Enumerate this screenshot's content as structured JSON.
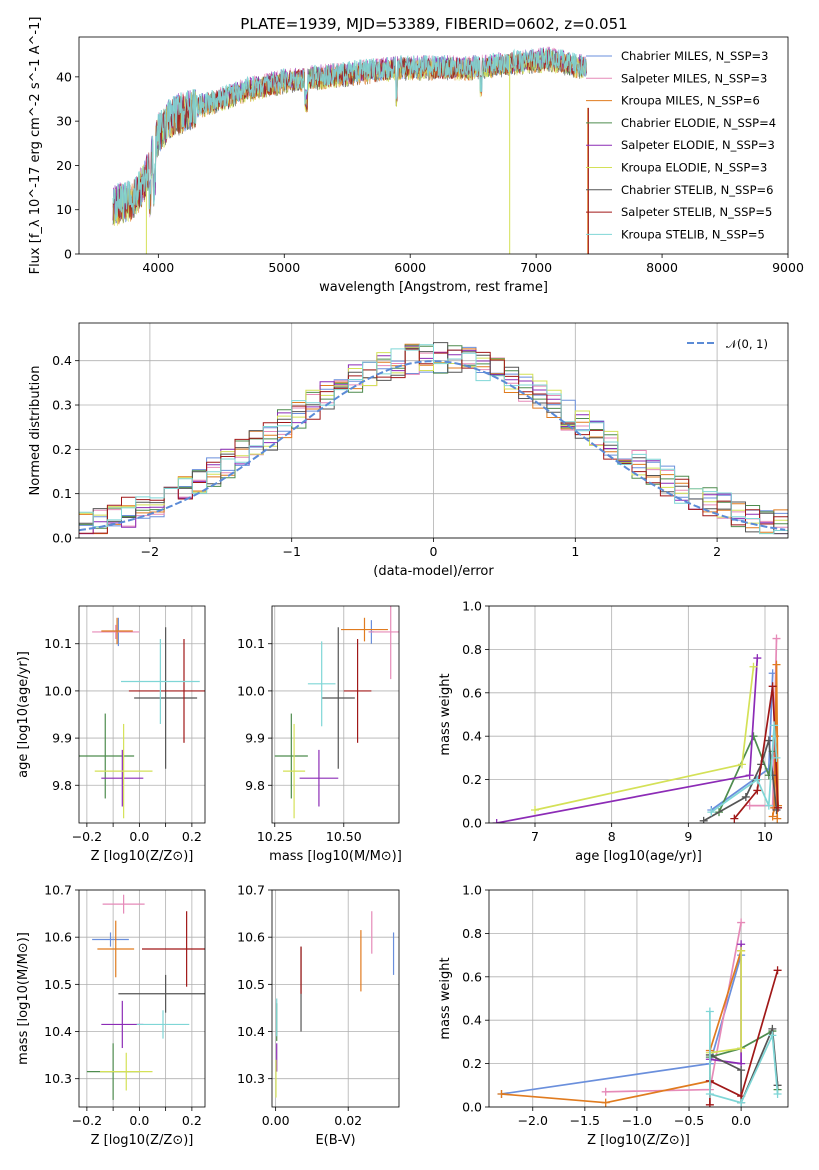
{
  "figure": {
    "title": "PLATE=1939, MJD=53389, FIBERID=0602, z=0.051"
  },
  "colors": {
    "c0": "#6a8fdc",
    "c1": "#e68ab8",
    "c2": "#e07b1f",
    "c3": "#4e8c4e",
    "c4": "#8c2bb6",
    "c5": "#d4e157",
    "c6": "#555555",
    "c7": "#a01818",
    "c8": "#7fd6d6",
    "dashed": "#5b8bd6"
  },
  "chart_data": [
    {
      "id": "spectrum",
      "type": "line",
      "xlabel": "wavelength [Angstrom, rest frame]",
      "ylabel": "Flux [f_λ 10^-17 erg cm^-2 s^-1 A^-1]",
      "xlim": [
        3370,
        9000
      ],
      "ylim": [
        0,
        49
      ],
      "xticks": [
        4000,
        5000,
        6000,
        7000,
        8000,
        9000
      ],
      "yticks": [
        0,
        10,
        20,
        30,
        40
      ],
      "grid": false,
      "legend": "upper-right",
      "legend_entries": [
        {
          "name": "Chabrier MILES, N_SSP=3",
          "color": "c0"
        },
        {
          "name": "Salpeter MILES, N_SSP=3",
          "color": "c1"
        },
        {
          "name": "Kroupa MILES, N_SSP=6",
          "color": "c2"
        },
        {
          "name": "Chabrier ELODIE, N_SSP=4",
          "color": "c3"
        },
        {
          "name": "Salpeter ELODIE, N_SSP=3",
          "color": "c4"
        },
        {
          "name": "Kroupa ELODIE, N_SSP=3",
          "color": "c5"
        },
        {
          "name": "Chabrier STELIB, N_SSP=6",
          "color": "c6"
        },
        {
          "name": "Salpeter STELIB, N_SSP=5",
          "color": "c7"
        },
        {
          "name": "Kroupa STELIB, N_SSP=5",
          "color": "c8"
        }
      ],
      "continuum": {
        "x": [
          3640,
          3800,
          3900,
          4000,
          4100,
          4300,
          4500,
          4700,
          5000,
          5300,
          5600,
          5900,
          6200,
          6500,
          6800,
          7100,
          7400
        ],
        "y": [
          11,
          12,
          17,
          27,
          31,
          33,
          35,
          37,
          39,
          40,
          41,
          42,
          42,
          42,
          43,
          44,
          42
        ]
      },
      "spikes": [
        {
          "x": 3905,
          "ymin": 0,
          "ymax": 15,
          "color": "c5"
        },
        {
          "x": 6790,
          "ymin": 0,
          "ymax": 45,
          "color": "c5"
        },
        {
          "x": 7410,
          "ymin": 0,
          "ymax": 33,
          "color": "c2"
        },
        {
          "x": 7415,
          "ymin": 0,
          "ymax": 33,
          "color": "c7"
        }
      ]
    },
    {
      "id": "residuals",
      "type": "histogram",
      "xlabel": "(data-model)/error",
      "ylabel": "Normed distribution",
      "xlim": [
        -2.5,
        2.5
      ],
      "ylim": [
        0,
        0.485
      ],
      "xticks": [
        -2,
        -1,
        0,
        1,
        2
      ],
      "yticks": [
        0.0,
        0.1,
        0.2,
        0.3,
        0.4
      ],
      "grid": true,
      "bin_width": 0.1,
      "legend": "upper-right",
      "legend_entries": [
        {
          "name": "𝒩(0, 1)",
          "color": "dashed",
          "style": "dashed"
        }
      ],
      "normal_curve": {
        "mean": 0,
        "sigma": 1
      }
    },
    {
      "id": "age-vs-Z",
      "type": "errorbar",
      "xlabel": "Z [log10(Z/Z⊙)]",
      "ylabel": "age [log10(age/yr)]",
      "xlim": [
        -0.23,
        0.25
      ],
      "ylim": [
        9.72,
        10.18
      ],
      "xticks": [
        -0.2,
        -0.1,
        0.0,
        0.1,
        0.2
      ],
      "xticklabels": [
        "−0.2",
        "",
        "0.0",
        "",
        "0.2"
      ],
      "yticks": [
        9.8,
        9.9,
        10.0,
        10.1
      ],
      "grid": true,
      "points": [
        {
          "x": -0.08,
          "y": 10.125,
          "xerr": 0.05,
          "yerr": 0.03,
          "color": "c0"
        },
        {
          "x": -0.09,
          "y": 10.125,
          "xerr": 0.09,
          "yerr": 0.015,
          "color": "c1"
        },
        {
          "x": -0.085,
          "y": 10.127,
          "xerr": 0.06,
          "yerr": 0.028,
          "color": "c2"
        },
        {
          "x": -0.13,
          "y": 9.862,
          "xerr": 0.11,
          "yerr": 0.09,
          "color": "c3"
        },
        {
          "x": -0.065,
          "y": 9.815,
          "xerr": 0.08,
          "yerr": 0.06,
          "color": "c4"
        },
        {
          "x": -0.06,
          "y": 9.83,
          "xerr": 0.11,
          "yerr": 0.1,
          "color": "c5"
        },
        {
          "x": 0.1,
          "y": 9.985,
          "xerr": 0.12,
          "yerr": 0.15,
          "color": "c6"
        },
        {
          "x": 0.17,
          "y": 10.0,
          "xerr": 0.21,
          "yerr": 0.11,
          "color": "c7"
        },
        {
          "x": 0.08,
          "y": 10.02,
          "xerr": 0.15,
          "yerr": 0.09,
          "color": "c8"
        }
      ]
    },
    {
      "id": "age-vs-mass",
      "type": "errorbar",
      "xlabel": "mass [log10(M/M⊙)]",
      "ylabel": "",
      "xlim": [
        10.24,
        10.7
      ],
      "ylim": [
        9.72,
        10.18
      ],
      "xticks": [
        10.25,
        10.5
      ],
      "xticklabels": [
        "10.25",
        "10.50"
      ],
      "yticks": [
        9.8,
        9.9,
        10.0,
        10.1
      ],
      "grid": true,
      "points": [
        {
          "x": 10.6,
          "y": 10.125,
          "xerr": 0.01,
          "yerr": 0.025,
          "color": "c0"
        },
        {
          "x": 10.67,
          "y": 10.125,
          "xerr": 0.08,
          "yerr": 0.1,
          "color": "c1"
        },
        {
          "x": 10.575,
          "y": 10.13,
          "xerr": 0.085,
          "yerr": 0.025,
          "color": "c2"
        },
        {
          "x": 10.31,
          "y": 9.862,
          "xerr": 0.06,
          "yerr": 0.09,
          "color": "c3"
        },
        {
          "x": 10.41,
          "y": 9.815,
          "xerr": 0.07,
          "yerr": 0.06,
          "color": "c4"
        },
        {
          "x": 10.32,
          "y": 9.83,
          "xerr": 0.04,
          "yerr": 0.1,
          "color": "c5"
        },
        {
          "x": 10.48,
          "y": 9.985,
          "xerr": 0.06,
          "yerr": 0.15,
          "color": "c6"
        },
        {
          "x": 10.55,
          "y": 10.0,
          "xerr": 0.05,
          "yerr": 0.11,
          "color": "c7"
        },
        {
          "x": 10.42,
          "y": 10.015,
          "xerr": 0.05,
          "yerr": 0.09,
          "color": "c8"
        }
      ]
    },
    {
      "id": "weight-vs-age",
      "type": "line",
      "xlabel": "age [log10(age/yr)]",
      "ylabel": "mass weight",
      "xlim": [
        6.4,
        10.3
      ],
      "ylim": [
        0,
        1.0
      ],
      "xticks": [
        7,
        8,
        9,
        10
      ],
      "yticks": [
        0.0,
        0.2,
        0.4,
        0.6,
        0.8,
        1.0
      ],
      "grid": true,
      "series": [
        {
          "color": "c0",
          "x": [
            9.3,
            10.05,
            10.1
          ],
          "y": [
            0.06,
            0.25,
            0.69
          ]
        },
        {
          "color": "c1",
          "x": [
            9.8,
            10.1,
            10.15
          ],
          "y": [
            0.08,
            0.08,
            0.85
          ]
        },
        {
          "color": "c2",
          "x": [
            10.1,
            10.12,
            10.15,
            10.17,
            10.13,
            10.16
          ],
          "y": [
            0.03,
            0.07,
            0.73,
            0.08,
            0.4,
            0.02
          ]
        },
        {
          "color": "c3",
          "x": [
            9.4,
            9.85,
            10.05,
            10.1
          ],
          "y": [
            0.05,
            0.4,
            0.22,
            0.33
          ]
        },
        {
          "color": "c4",
          "x": [
            6.5,
            9.8,
            9.9
          ],
          "y": [
            0.0,
            0.22,
            0.76
          ]
        },
        {
          "color": "c5",
          "x": [
            7.0,
            9.7,
            9.85
          ],
          "y": [
            0.06,
            0.27,
            0.72
          ]
        },
        {
          "color": "c6",
          "x": [
            9.2,
            9.75,
            9.95,
            10.05,
            10.1,
            10.15
          ],
          "y": [
            0.01,
            0.12,
            0.27,
            0.38,
            0.22,
            0.06
          ]
        },
        {
          "color": "c7",
          "x": [
            9.6,
            9.9,
            10.1,
            10.17
          ],
          "y": [
            0.02,
            0.15,
            0.63,
            0.07
          ]
        },
        {
          "color": "c8",
          "x": [
            9.3,
            9.9,
            10.05,
            10.12,
            10.15
          ],
          "y": [
            0.05,
            0.2,
            0.08,
            0.45,
            0.3
          ]
        }
      ]
    },
    {
      "id": "mass-vs-Z",
      "type": "errorbar",
      "xlabel": "Z [log10(Z/Z⊙)]",
      "ylabel": "mass [log10(M/M⊙)]",
      "xlim": [
        -0.23,
        0.25
      ],
      "ylim": [
        10.24,
        10.7
      ],
      "xticks": [
        -0.2,
        -0.1,
        0.0,
        0.1,
        0.2
      ],
      "xticklabels": [
        "−0.2",
        "",
        "0.0",
        "",
        "0.2"
      ],
      "yticks": [
        10.3,
        10.4,
        10.5,
        10.6,
        10.7
      ],
      "grid": true,
      "points": [
        {
          "x": -0.11,
          "y": 10.595,
          "xerr": 0.07,
          "yerr": 0.015,
          "color": "c0"
        },
        {
          "x": -0.06,
          "y": 10.67,
          "xerr": 0.08,
          "yerr": 0.02,
          "color": "c1"
        },
        {
          "x": -0.09,
          "y": 10.575,
          "xerr": 0.07,
          "yerr": 0.06,
          "color": "c2"
        },
        {
          "x": -0.1,
          "y": 10.315,
          "xerr": 0.1,
          "yerr": 0.06,
          "color": "c3"
        },
        {
          "x": -0.065,
          "y": 10.415,
          "xerr": 0.08,
          "yerr": 0.05,
          "color": "c4"
        },
        {
          "x": -0.05,
          "y": 10.315,
          "xerr": 0.1,
          "yerr": 0.04,
          "color": "c5"
        },
        {
          "x": 0.1,
          "y": 10.48,
          "xerr": 0.18,
          "yerr": 0.04,
          "color": "c6"
        },
        {
          "x": 0.18,
          "y": 10.575,
          "xerr": 0.17,
          "yerr": 0.08,
          "color": "c7"
        },
        {
          "x": 0.09,
          "y": 10.415,
          "xerr": 0.1,
          "yerr": 0.03,
          "color": "c8"
        }
      ]
    },
    {
      "id": "mass-vs-EBV",
      "type": "errorbar",
      "xlabel": "E(B-V)",
      "ylabel": "",
      "xlim": [
        -0.001,
        0.034
      ],
      "ylim": [
        10.24,
        10.7
      ],
      "xticks": [
        0.0,
        0.02
      ],
      "xticklabels": [
        "0.00",
        "0.02"
      ],
      "yticks": [
        10.3,
        10.4,
        10.5,
        10.6,
        10.7
      ],
      "grid": true,
      "points": [
        {
          "x": 0.0325,
          "y": 10.565,
          "xerr": 0,
          "yerr": 0.045,
          "color": "c0"
        },
        {
          "x": 0.0265,
          "y": 10.61,
          "xerr": 0,
          "yerr": 0.045,
          "color": "c1"
        },
        {
          "x": 0.0235,
          "y": 10.55,
          "xerr": 0,
          "yerr": 0.065,
          "color": "c2"
        },
        {
          "x": 0.0003,
          "y": 10.42,
          "xerr": 0,
          "yerr": 0.04,
          "color": "c3"
        },
        {
          "x": 0.0003,
          "y": 10.345,
          "xerr": 0,
          "yerr": 0.03,
          "color": "c4"
        },
        {
          "x": 0.0001,
          "y": 10.3,
          "xerr": 0,
          "yerr": 0.04,
          "color": "c5"
        },
        {
          "x": 0.007,
          "y": 10.49,
          "xerr": 0,
          "yerr": 0.09,
          "color": "c6"
        },
        {
          "x": 0.007,
          "y": 10.53,
          "xerr": 0,
          "yerr": 0.05,
          "color": "c7"
        },
        {
          "x": 0.0003,
          "y": 10.43,
          "xerr": 0,
          "yerr": 0.04,
          "color": "c8"
        }
      ]
    },
    {
      "id": "weight-vs-Z",
      "type": "line",
      "xlabel": "Z [log10(Z/Z⊙)]",
      "ylabel": "mass weight",
      "xlim": [
        -2.42,
        0.45
      ],
      "ylim": [
        0,
        1.0
      ],
      "xticks": [
        -2.0,
        -1.5,
        -1.0,
        -0.5,
        0.0
      ],
      "xticklabels": [
        "−2.0",
        "−1.5",
        "−1.0",
        "−0.5",
        "0.0"
      ],
      "yticks": [
        0.0,
        0.2,
        0.4,
        0.6,
        0.8,
        1.0
      ],
      "grid": true,
      "series": [
        {
          "color": "c0",
          "x": [
            -2.3,
            -0.3,
            0.0
          ],
          "y": [
            0.06,
            0.2,
            0.7
          ]
        },
        {
          "color": "c1",
          "x": [
            -1.3,
            -0.3,
            0.0
          ],
          "y": [
            0.07,
            0.08,
            0.85
          ]
        },
        {
          "color": "c2",
          "x": [
            -2.3,
            -1.3,
            -0.3,
            -0.3,
            0.0
          ],
          "y": [
            0.06,
            0.02,
            0.12,
            0.26,
            0.72
          ]
        },
        {
          "color": "c3",
          "x": [
            -0.3,
            0.0,
            0.3,
            0.35
          ],
          "y": [
            0.23,
            0.27,
            0.35,
            0.08
          ]
        },
        {
          "color": "c4",
          "x": [
            -0.3,
            0.0,
            0.0
          ],
          "y": [
            0.22,
            0.2,
            0.75
          ]
        },
        {
          "color": "c5",
          "x": [
            -0.3,
            0.0,
            0.0
          ],
          "y": [
            0.25,
            0.27,
            0.72
          ]
        },
        {
          "color": "c6",
          "x": [
            -0.3,
            0.0,
            0.0,
            0.3,
            0.35
          ],
          "y": [
            0.24,
            0.17,
            0.02,
            0.36,
            0.1
          ]
        },
        {
          "color": "c7",
          "x": [
            -0.3,
            -0.3,
            0.0,
            0.35
          ],
          "y": [
            0.01,
            0.12,
            0.05,
            0.63
          ]
        },
        {
          "color": "c8",
          "x": [
            -0.3,
            -0.3,
            0.0,
            0.3,
            0.35
          ],
          "y": [
            0.44,
            0.06,
            0.02,
            0.33,
            0.06
          ]
        }
      ]
    }
  ]
}
